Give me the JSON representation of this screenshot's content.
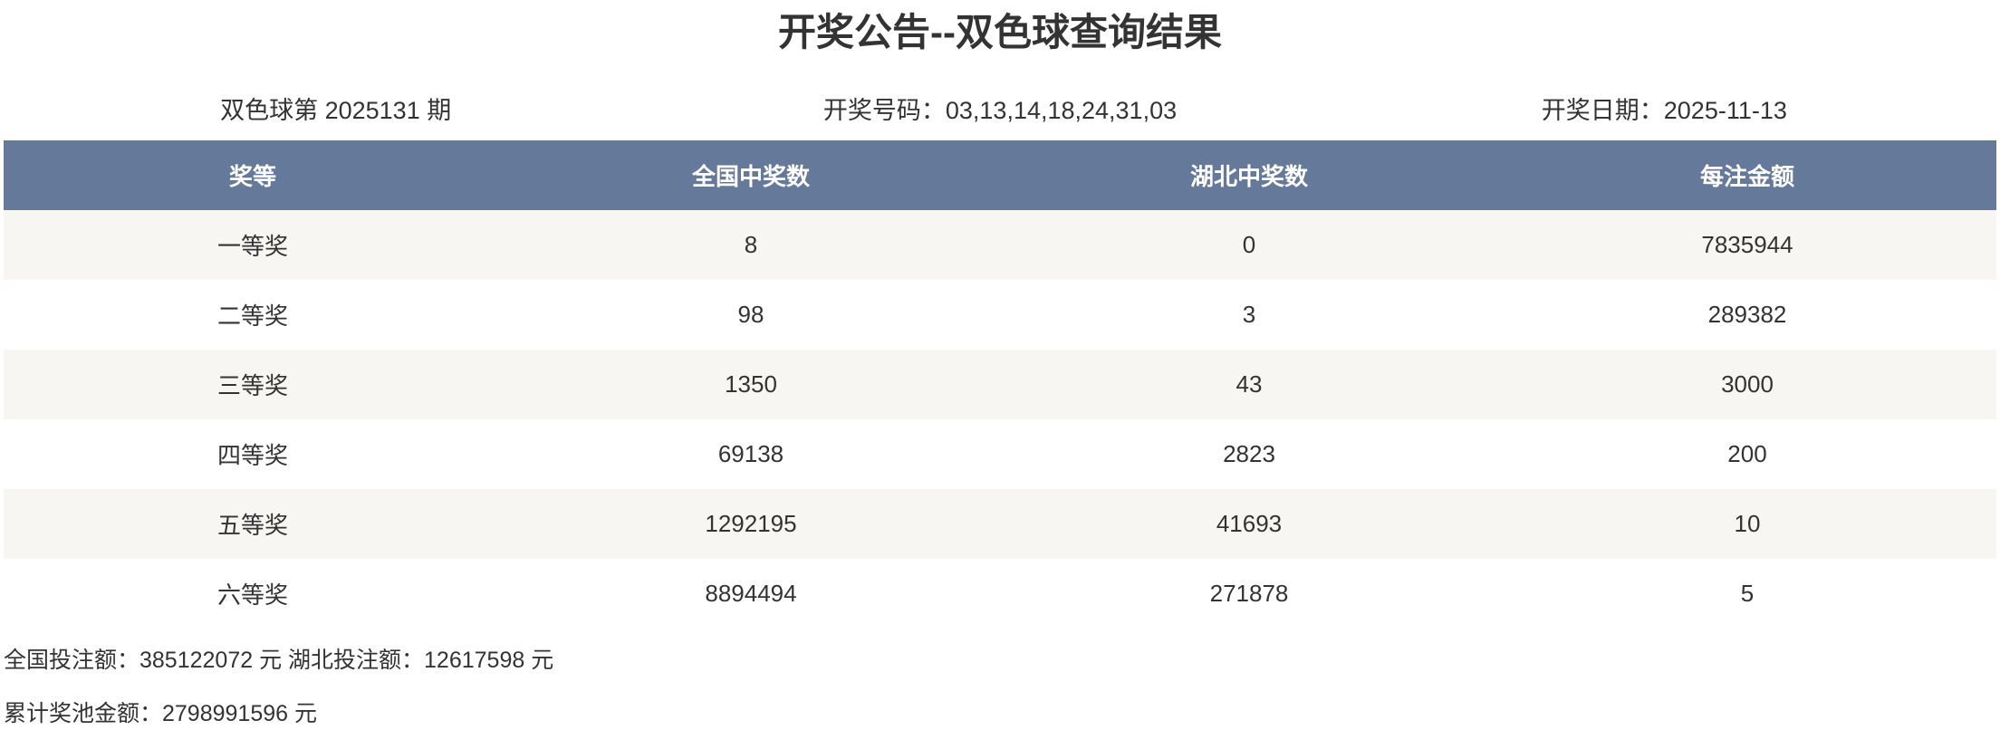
{
  "title": "开奖公告--双色球查询结果",
  "info": {
    "issue": "双色球第 2025131 期",
    "numbers": "开奖号码：03,13,14,18,24,31,03",
    "date": "开奖日期：2025-11-13"
  },
  "table": {
    "headers": [
      "奖等",
      "全国中奖数",
      "湖北中奖数",
      "每注金额"
    ],
    "rows": [
      [
        "一等奖",
        "8",
        "0",
        "7835944"
      ],
      [
        "二等奖",
        "98",
        "3",
        "289382"
      ],
      [
        "三等奖",
        "1350",
        "43",
        "3000"
      ],
      [
        "四等奖",
        "69138",
        "2823",
        "200"
      ],
      [
        "五等奖",
        "1292195",
        "41693",
        "10"
      ],
      [
        "六等奖",
        "8894494",
        "271878",
        "5"
      ]
    ]
  },
  "footer": {
    "sales": "全国投注额：385122072 元 湖北投注额：12617598 元",
    "pool": "累计奖池金额：2798991596 元"
  },
  "colors": {
    "header_bg": "#657a9a",
    "row_alt_bg": "#f7f6f2",
    "text": "#333333"
  }
}
